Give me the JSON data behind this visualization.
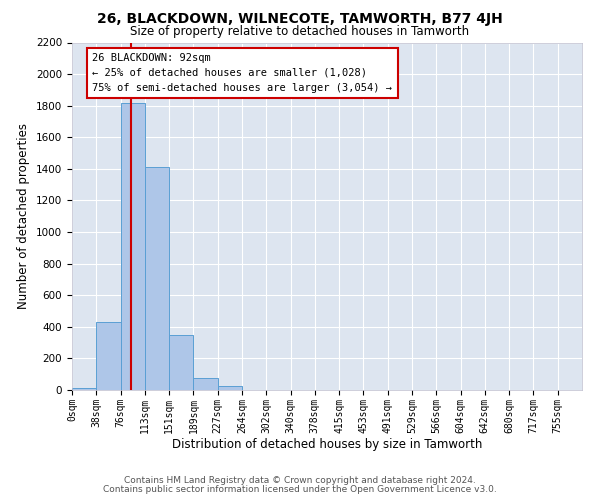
{
  "title": "26, BLACKDOWN, WILNECOTE, TAMWORTH, B77 4JH",
  "subtitle": "Size of property relative to detached houses in Tamworth",
  "xlabel": "Distribution of detached houses by size in Tamworth",
  "ylabel": "Number of detached properties",
  "bar_labels": [
    "0sqm",
    "38sqm",
    "76sqm",
    "113sqm",
    "151sqm",
    "189sqm",
    "227sqm",
    "264sqm",
    "302sqm",
    "340sqm",
    "378sqm",
    "415sqm",
    "453sqm",
    "491sqm",
    "529sqm",
    "566sqm",
    "604sqm",
    "642sqm",
    "680sqm",
    "717sqm",
    "755sqm"
  ],
  "bar_values": [
    10,
    430,
    1820,
    1410,
    350,
    75,
    25,
    0,
    0,
    0,
    0,
    0,
    0,
    0,
    0,
    0,
    0,
    0,
    0,
    0,
    0
  ],
  "bar_color": "#aec6e8",
  "bar_edge_color": "#5a9fd4",
  "property_sqm": 92,
  "property_label": "26 BLACKDOWN: 92sqm",
  "annotation_line1": "← 25% of detached houses are smaller (1,028)",
  "annotation_line2": "75% of semi-detached houses are larger (3,054) →",
  "red_line_color": "#cc0000",
  "annotation_box_color": "#ffffff",
  "annotation_box_edge_color": "#cc0000",
  "ylim": [
    0,
    2200
  ],
  "yticks": [
    0,
    200,
    400,
    600,
    800,
    1000,
    1200,
    1400,
    1600,
    1800,
    2000,
    2200
  ],
  "bg_color": "#dde5f0",
  "footer_line1": "Contains HM Land Registry data © Crown copyright and database right 2024.",
  "footer_line2": "Contains public sector information licensed under the Open Government Licence v3.0.",
  "bin_edges": [
    0,
    38,
    76,
    113,
    151,
    189,
    227,
    264,
    302,
    340,
    378,
    415,
    453,
    491,
    529,
    566,
    604,
    642,
    680,
    717,
    755
  ]
}
